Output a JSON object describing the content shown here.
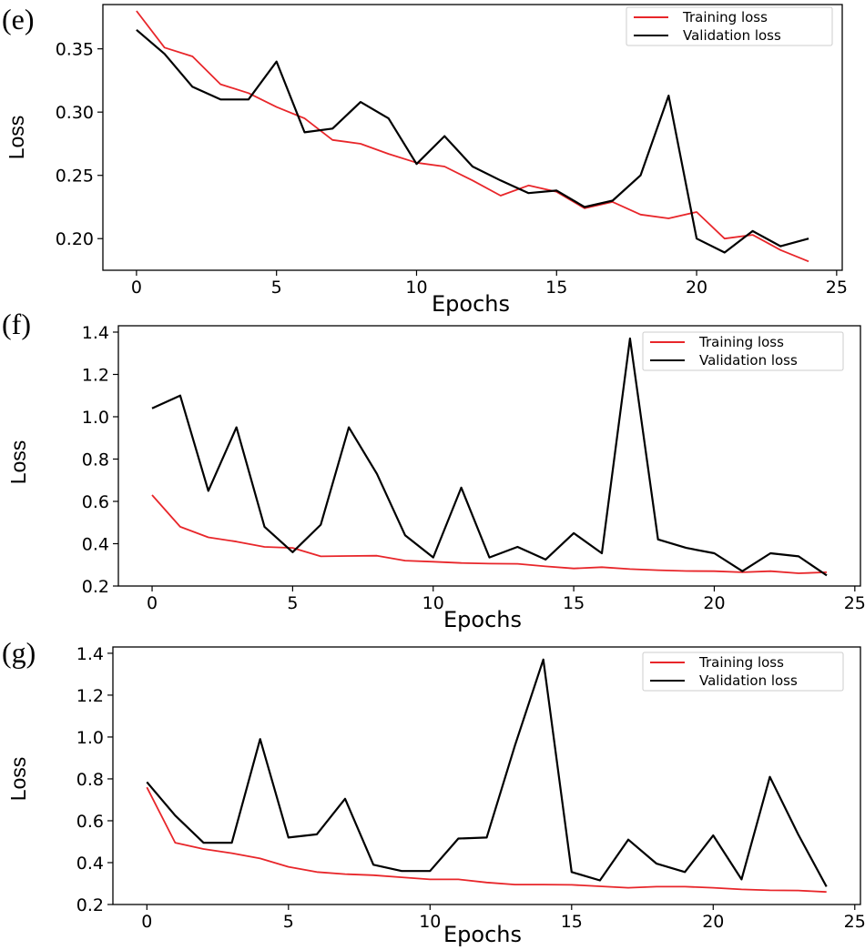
{
  "chart_data": [
    {
      "type": "line",
      "panel_label": "(e)",
      "xlabel": "Epochs",
      "ylabel": "Loss",
      "xlim": [
        -1.2,
        25.2
      ],
      "ylim": [
        0.175,
        0.385
      ],
      "xticks": [
        0,
        5,
        10,
        15,
        20,
        25
      ],
      "yticks": [
        0.2,
        0.25,
        0.3,
        0.35
      ],
      "ytick_labels": [
        "0.20",
        "0.25",
        "0.30",
        "0.35"
      ],
      "grid": false,
      "legend_position": "top-right",
      "series": [
        {
          "name": "Training loss",
          "color": "#e8262a",
          "x": [
            0,
            1,
            2,
            3,
            4,
            5,
            6,
            7,
            8,
            9,
            10,
            11,
            12,
            13,
            14,
            15,
            16,
            17,
            18,
            19,
            20,
            21,
            22,
            23,
            24
          ],
          "values": [
            0.38,
            0.351,
            0.344,
            0.322,
            0.315,
            0.304,
            0.295,
            0.278,
            0.275,
            0.267,
            0.26,
            0.257,
            0.246,
            0.234,
            0.242,
            0.237,
            0.224,
            0.229,
            0.219,
            0.216,
            0.221,
            0.2,
            0.203,
            0.191,
            0.182
          ]
        },
        {
          "name": "Validation loss",
          "color": "#000000",
          "x": [
            0,
            1,
            2,
            3,
            4,
            5,
            6,
            7,
            8,
            9,
            10,
            11,
            12,
            13,
            14,
            15,
            16,
            17,
            18,
            19,
            20,
            21,
            22,
            23,
            24
          ],
          "values": [
            0.365,
            0.346,
            0.32,
            0.31,
            0.31,
            0.34,
            0.284,
            0.287,
            0.308,
            0.295,
            0.259,
            0.281,
            0.257,
            0.246,
            0.236,
            0.238,
            0.225,
            0.23,
            0.25,
            0.313,
            0.2,
            0.189,
            0.206,
            0.194,
            0.2
          ]
        }
      ]
    },
    {
      "type": "line",
      "panel_label": "(f)",
      "xlabel": "Epochs",
      "ylabel": "Loss",
      "xlim": [
        -1.2,
        25.2
      ],
      "ylim": [
        0.2,
        1.43
      ],
      "xticks": [
        0,
        5,
        10,
        15,
        20,
        25
      ],
      "yticks": [
        0.2,
        0.4,
        0.6,
        0.8,
        1.0,
        1.2,
        1.4
      ],
      "ytick_labels": [
        "0.2",
        "0.4",
        "0.6",
        "0.8",
        "1.0",
        "1.2",
        "1.4"
      ],
      "grid": false,
      "legend_position": "top-right",
      "series": [
        {
          "name": "Training loss",
          "color": "#e8262a",
          "x": [
            0,
            1,
            2,
            3,
            4,
            5,
            6,
            7,
            8,
            9,
            10,
            11,
            12,
            13,
            14,
            15,
            16,
            17,
            18,
            19,
            20,
            21,
            22,
            23,
            24
          ],
          "values": [
            0.63,
            0.48,
            0.43,
            0.41,
            0.385,
            0.38,
            0.34,
            0.342,
            0.343,
            0.32,
            0.315,
            0.309,
            0.306,
            0.305,
            0.293,
            0.283,
            0.289,
            0.28,
            0.275,
            0.271,
            0.27,
            0.265,
            0.27,
            0.26,
            0.265
          ]
        },
        {
          "name": "Validation loss",
          "color": "#000000",
          "x": [
            0,
            1,
            2,
            3,
            4,
            5,
            6,
            7,
            8,
            9,
            10,
            11,
            12,
            13,
            14,
            15,
            16,
            17,
            18,
            19,
            20,
            21,
            22,
            23,
            24
          ],
          "values": [
            1.04,
            1.1,
            0.65,
            0.95,
            0.48,
            0.36,
            0.49,
            0.95,
            0.73,
            0.44,
            0.335,
            0.665,
            0.335,
            0.385,
            0.325,
            0.45,
            0.355,
            1.37,
            0.42,
            0.38,
            0.355,
            0.27,
            0.355,
            0.34,
            0.25
          ]
        }
      ]
    },
    {
      "type": "line",
      "panel_label": "(g)",
      "xlabel": "Epochs",
      "ylabel": "Loss",
      "xlim": [
        -1.2,
        25.2
      ],
      "ylim": [
        0.2,
        1.43
      ],
      "xticks": [
        0,
        5,
        10,
        15,
        20,
        25
      ],
      "yticks": [
        0.2,
        0.4,
        0.6,
        0.8,
        1.0,
        1.2,
        1.4
      ],
      "ytick_labels": [
        "0.2",
        "0.4",
        "0.6",
        "0.8",
        "1.0",
        "1.2",
        "1.4"
      ],
      "grid": false,
      "legend_position": "top-right",
      "series": [
        {
          "name": "Training loss",
          "color": "#e8262a",
          "x": [
            0,
            1,
            2,
            3,
            4,
            5,
            6,
            7,
            8,
            9,
            10,
            11,
            12,
            13,
            14,
            15,
            16,
            17,
            18,
            19,
            20,
            21,
            22,
            23,
            24
          ],
          "values": [
            0.76,
            0.495,
            0.465,
            0.445,
            0.42,
            0.38,
            0.355,
            0.345,
            0.34,
            0.33,
            0.32,
            0.32,
            0.305,
            0.295,
            0.295,
            0.294,
            0.287,
            0.28,
            0.285,
            0.285,
            0.28,
            0.272,
            0.268,
            0.267,
            0.26
          ]
        },
        {
          "name": "Validation loss",
          "color": "#000000",
          "x": [
            0,
            1,
            2,
            3,
            4,
            5,
            6,
            7,
            8,
            9,
            10,
            11,
            12,
            13,
            14,
            15,
            16,
            17,
            18,
            19,
            20,
            21,
            22,
            23,
            24
          ],
          "values": [
            0.785,
            0.625,
            0.495,
            0.495,
            0.99,
            0.52,
            0.535,
            0.705,
            0.39,
            0.36,
            0.36,
            0.515,
            0.52,
            0.96,
            1.37,
            0.355,
            0.315,
            0.51,
            0.395,
            0.355,
            0.53,
            0.32,
            0.81,
            0.535,
            0.285
          ]
        }
      ]
    }
  ]
}
